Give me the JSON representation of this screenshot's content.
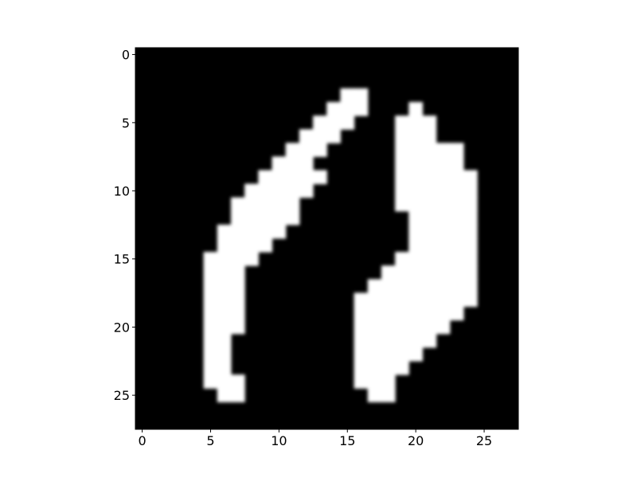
{
  "chart_data": {
    "type": "heatmap",
    "title": "",
    "xlabel": "",
    "ylabel": "",
    "colormap": "gray",
    "interpolation": "smooth",
    "vmin": 0,
    "vmax": 1,
    "background_color": "#000000",
    "foreground_color": "#ffffff",
    "xlim": [
      -0.5,
      27.5
    ],
    "ylim": [
      27.5,
      -0.5
    ],
    "x_ticks": [
      0,
      5,
      10,
      15,
      20,
      25
    ],
    "x_tick_labels": [
      "0",
      "5",
      "10",
      "15",
      "20",
      "25"
    ],
    "y_ticks": [
      0,
      5,
      10,
      15,
      20,
      25
    ],
    "y_tick_labels": [
      "0",
      "5",
      "10",
      "15",
      "20",
      "25"
    ],
    "grid": false,
    "rows": 28,
    "cols": 28,
    "pixels": [
      "0000000000000000000000000000",
      "0000000000000000000000000000",
      "0000000000000000000000000000",
      "0000000000000001100000000000",
      "0000000000000011100010000000",
      "0000000000000111000111000000",
      "0000000000001110000111000000",
      "0000000000011100000111110000",
      "0000000000111000000111110000",
      "0000000001111100000111111000",
      "0000000011111000000111111000",
      "0000000111110000000111111000",
      "0000000111110000000011111000",
      "0000001111100000000011111000",
      "0000001111000000000011111000",
      "0000011110000000000111111000",
      "0000011100000000001111111000",
      "0000011100000000011111111000",
      "0000011100000000111111111000",
      "0000011100000000111111110000",
      "0000011100000000111111100000",
      "0000011000000000111111000000",
      "0000011000000000111110000000",
      "0000011000000000111100000000",
      "0000011100000000111000000000",
      "0000001100000000011000000000",
      "0000000000000000000000000000",
      "0000000000000000000000000000"
    ]
  }
}
